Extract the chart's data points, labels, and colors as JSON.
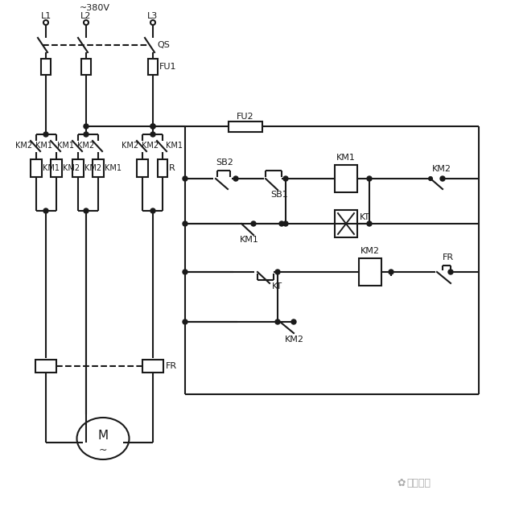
{
  "bg": "#ffffff",
  "lc": "#1a1a1a",
  "lw": 1.5,
  "fw": 6.4,
  "fh": 6.5,
  "watermark": "技成培训",
  "voltage": "~380V",
  "labels": {
    "L1": "L1",
    "L2": "L2",
    "L3": "L3",
    "QS": "QS",
    "FU1": "FU1",
    "FU2": "FU2",
    "SB1": "SB1",
    "SB2": "SB2",
    "KM1": "KM1",
    "KM2": "KM2",
    "KT": "KT",
    "FR": "FR",
    "R": "R",
    "M": "M"
  },
  "xL1": 57,
  "xL2": 107,
  "xL3": 190,
  "xCtrlL": 230,
  "xCtrlR": 595,
  "yBus": 157,
  "yR1": 222,
  "yR2": 278,
  "yR3": 338,
  "yR4": 400,
  "yFR": 455,
  "yMot": 545,
  "yCtrlBot": 490
}
